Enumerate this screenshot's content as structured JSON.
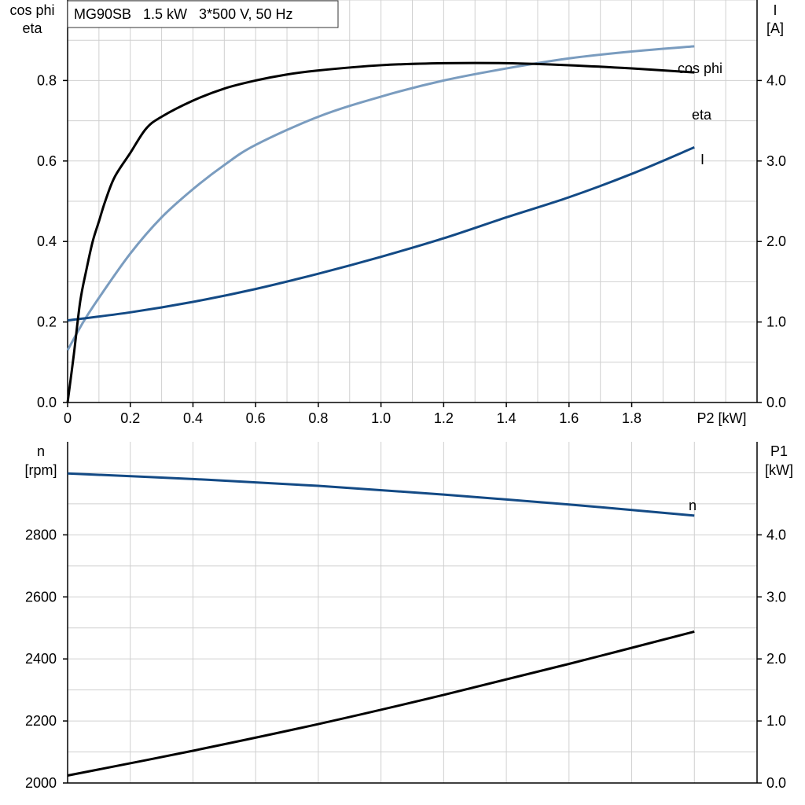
{
  "title": "MG90SB   1.5 kW   3*500 V, 50 Hz",
  "colors": {
    "eta": "#000000",
    "cos_phi": "#7a9cbf",
    "current": "#134a85",
    "n": "#134a85",
    "p1": "#000000"
  },
  "chart_data": [
    {
      "type": "line",
      "title": "MG90SB   1.5 kW   3*500 V, 50 Hz",
      "xlabel": "P2 [kW]",
      "ylabel_left_1": "cos phi",
      "ylabel_left_2": "eta",
      "ylabel_right_1": "I",
      "ylabel_right_2": "[A]",
      "xlim": [
        0,
        2.2
      ],
      "ylim_left": [
        0,
        1.0
      ],
      "ylim_right": [
        0,
        5.0
      ],
      "x_ticks": [
        "0",
        "0.2",
        "0.4",
        "0.6",
        "0.8",
        "1.0",
        "1.2",
        "1.4",
        "1.6",
        "1.8"
      ],
      "y_left_ticks": [
        "0.0",
        "0.2",
        "0.4",
        "0.6",
        "0.8"
      ],
      "y_right_ticks": [
        "0.0",
        "1.0",
        "2.0",
        "3.0",
        "4.0"
      ],
      "grid": true,
      "series": [
        {
          "name": "eta",
          "axis": "left",
          "x": [
            0,
            0.02,
            0.04,
            0.06,
            0.08,
            0.1,
            0.12,
            0.15,
            0.2,
            0.25,
            0.3,
            0.4,
            0.5,
            0.6,
            0.7,
            0.8,
            1.0,
            1.2,
            1.4,
            1.6,
            1.8,
            2.0
          ],
          "y": [
            0,
            0.12,
            0.25,
            0.33,
            0.4,
            0.45,
            0.5,
            0.56,
            0.62,
            0.68,
            0.71,
            0.75,
            0.78,
            0.8,
            0.815,
            0.825,
            0.838,
            0.843,
            0.843,
            0.838,
            0.83,
            0.82
          ]
        },
        {
          "name": "cos phi",
          "axis": "left",
          "x": [
            0,
            0.05,
            0.1,
            0.2,
            0.3,
            0.4,
            0.5,
            0.6,
            0.8,
            1.0,
            1.2,
            1.4,
            1.6,
            1.8,
            2.0
          ],
          "y": [
            0.13,
            0.2,
            0.26,
            0.37,
            0.46,
            0.53,
            0.59,
            0.64,
            0.71,
            0.76,
            0.8,
            0.83,
            0.855,
            0.872,
            0.885
          ]
        },
        {
          "name": "I",
          "axis": "right",
          "x": [
            0,
            0.2,
            0.4,
            0.6,
            0.8,
            1.0,
            1.2,
            1.4,
            1.6,
            1.8,
            2.0
          ],
          "y": [
            1.02,
            1.12,
            1.25,
            1.41,
            1.6,
            1.81,
            2.04,
            2.3,
            2.55,
            2.84,
            3.17
          ]
        }
      ]
    },
    {
      "type": "line",
      "xlim": [
        0,
        2.2
      ],
      "ylabel_left_1": "n",
      "ylabel_left_2": "[rpm]",
      "ylabel_right_1": "P1",
      "ylabel_right_2": "[kW]",
      "ylim_left": [
        2000,
        3100
      ],
      "ylim_right": [
        0,
        5.5
      ],
      "y_left_ticks": [
        "2000",
        "2200",
        "2400",
        "2600",
        "2800"
      ],
      "y_right_ticks": [
        "0.0",
        "1.0",
        "2.0",
        "3.0",
        "4.0"
      ],
      "grid": true,
      "series": [
        {
          "name": "n",
          "axis": "left",
          "x": [
            0,
            0.4,
            0.8,
            1.2,
            1.6,
            2.0
          ],
          "y": [
            2998,
            2980,
            2958,
            2930,
            2898,
            2862
          ]
        },
        {
          "name": "",
          "axis": "right",
          "x": [
            0,
            0.4,
            0.8,
            1.2,
            1.6,
            2.0
          ],
          "y": [
            0.12,
            0.52,
            0.95,
            1.42,
            1.92,
            2.44
          ]
        }
      ]
    }
  ]
}
